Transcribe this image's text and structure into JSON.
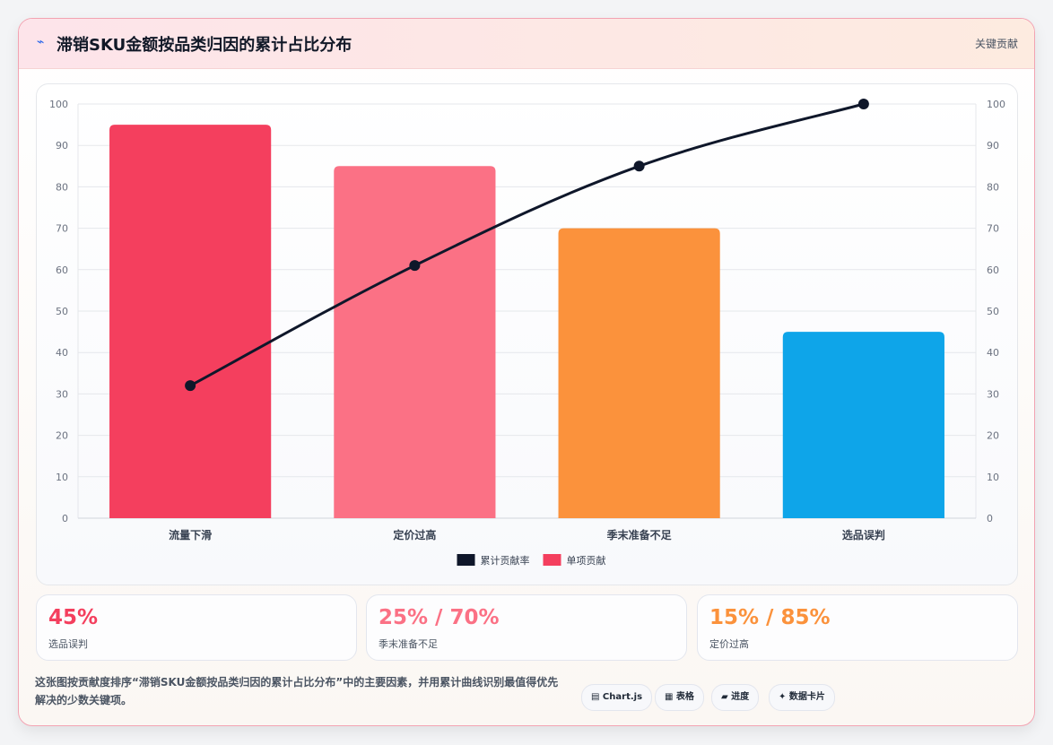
{
  "header": {
    "icon": "lightning-icon",
    "title": "滞销SKU金额按品类归因的累计占比分布",
    "right_label": "关键贡献"
  },
  "chart_data": {
    "type": "bar",
    "categories": [
      "流量下滑",
      "定价过高",
      "季末准备不足",
      "选品误判"
    ],
    "series": [
      {
        "name": "单项贡献",
        "type": "bar",
        "values": [
          95,
          85,
          70,
          45
        ],
        "colors": [
          "#f43f5e",
          "#fb7185",
          "#fb923c",
          "#0ea5e9"
        ]
      },
      {
        "name": "累计贡献率",
        "type": "line",
        "values": [
          32,
          61,
          85,
          100
        ],
        "color": "#0f172a"
      }
    ],
    "ylim": [
      0,
      100
    ],
    "y2lim": [
      0,
      100
    ],
    "yticks": [
      0,
      10,
      20,
      30,
      40,
      50,
      60,
      70,
      80,
      90,
      100
    ],
    "grid": true,
    "legend": "bottom",
    "legend_order": [
      "累计贡献率",
      "单项贡献"
    ],
    "legend_colors": [
      "#0f172a",
      "#f43f5e"
    ]
  },
  "kpis": [
    {
      "value": "45%",
      "label": "选品误判",
      "color": "#f43f5e"
    },
    {
      "value": "25% / 70%",
      "label": "季末准备不足",
      "color": "#fb7185"
    },
    {
      "value": "15% / 85%",
      "label": "定价过高",
      "color": "#fb923c"
    }
  ],
  "description": "这张图按贡献度排序“滞销SKU金额按品类归因的累计占比分布”中的主要因素，并用累计曲线识别最值得优先解决的少数关键项。",
  "tags": [
    "▤ Chart.js",
    "▦ 表格",
    "▰ 进度",
    "✦ 数据卡片"
  ]
}
